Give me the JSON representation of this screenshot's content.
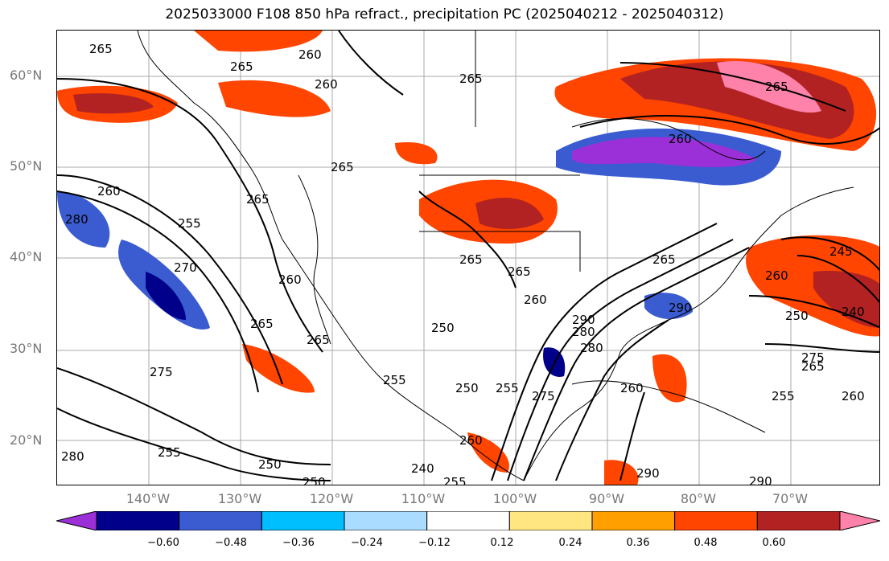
{
  "title": "2025033000 F108 850 hPa refract., precipitation PC (2025040212 - 2025040312)",
  "lat_labels": [
    "60°N",
    "50°N",
    "40°N",
    "30°N",
    "20°N"
  ],
  "lon_labels": [
    "140°W",
    "130°W",
    "120°W",
    "110°W",
    "100°W",
    "90°W",
    "80°W",
    "70°W"
  ],
  "colorbar": {
    "ticks": [
      "−0.60",
      "−0.48",
      "−0.36",
      "−0.24",
      "−0.12",
      "0.12",
      "0.24",
      "0.36",
      "0.48",
      "0.60"
    ],
    "colors": [
      "#9b30d9",
      "#00008b",
      "#3a5cd0",
      "#00bfff",
      "#aadcff",
      "#ffffff",
      "#ffe680",
      "#ff9f00",
      "#ff4500",
      "#b22222",
      "#ff82ab"
    ]
  },
  "contour_labels": [
    "265",
    "265",
    "260",
    "265",
    "260",
    "265",
    "265",
    "260",
    "265",
    "280",
    "260",
    "255",
    "270",
    "265",
    "275",
    "265",
    "265",
    "260",
    "265",
    "255",
    "250",
    "260",
    "280",
    "250",
    "255",
    "250",
    "240",
    "255",
    "260",
    "290",
    "290",
    "280",
    "265",
    "245",
    "260",
    "250",
    "240",
    "275",
    "265",
    "255",
    "260",
    "290",
    "275",
    "280",
    "290",
    "255",
    "250",
    "260"
  ]
}
